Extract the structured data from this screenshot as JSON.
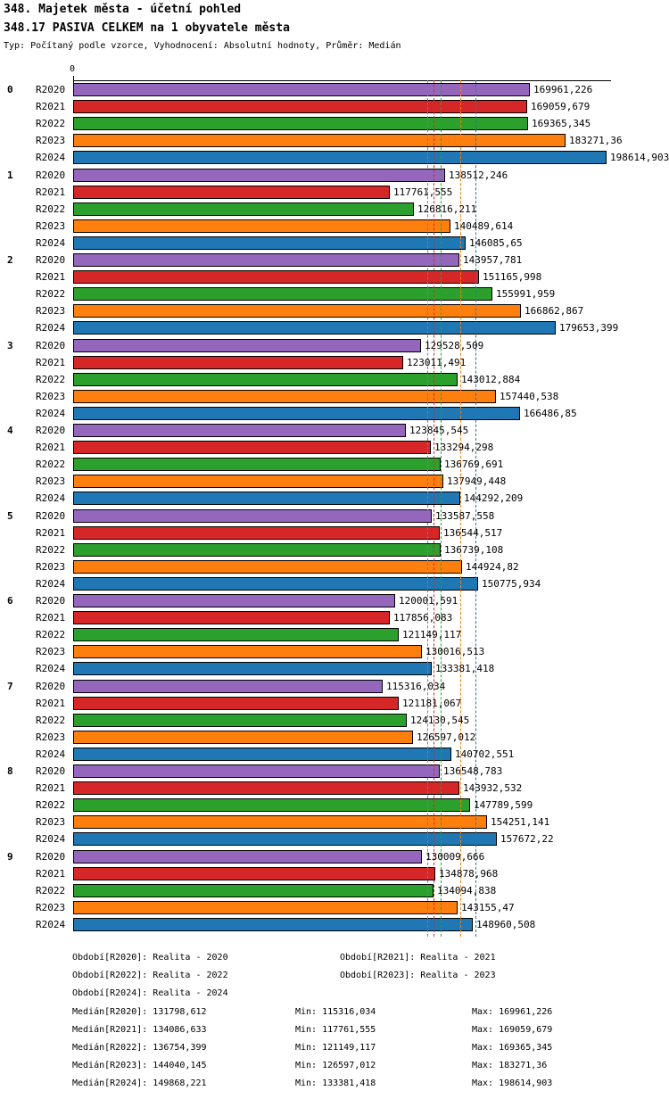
{
  "title": "348. Majetek města - účetní pohled",
  "subtitle": "348.17 PASIVA CELKEM na 1 obyvatele města",
  "meta": "Typ: Počítaný podle vzorce, Vyhodnocení: Absolutní hodnoty, Průměr: Medián",
  "axis": {
    "zero_label": "0"
  },
  "chart_data": {
    "type": "bar",
    "orientation": "horizontal",
    "xlim": [
      0,
      200000
    ],
    "grid": false,
    "categories": [
      "0",
      "1",
      "2",
      "3",
      "4",
      "5",
      "6",
      "7",
      "8",
      "9"
    ],
    "series_labels": [
      "R2020",
      "R2021",
      "R2022",
      "R2023",
      "R2024"
    ],
    "series_colors": [
      "#9467bd",
      "#d62728",
      "#2ca02c",
      "#ff7f0e",
      "#1f77b4"
    ],
    "medians": [
      131798.612,
      134086.633,
      136754.399,
      144040.145,
      149868.221
    ],
    "groups": [
      {
        "label": "0",
        "values": [
          169961.226,
          169059.679,
          169365.345,
          183271.36,
          198614.903
        ],
        "value_labels": [
          "169961,226",
          "169059,679",
          "169365,345",
          "183271,36",
          "198614,903"
        ]
      },
      {
        "label": "1",
        "values": [
          138512.246,
          117761.555,
          126816.211,
          140489.614,
          146085.65
        ],
        "value_labels": [
          "138512,246",
          "117761,555",
          "126816,211",
          "140489,614",
          "146085,65"
        ]
      },
      {
        "label": "2",
        "values": [
          143957.781,
          151165.998,
          155991.959,
          166862.867,
          179653.399
        ],
        "value_labels": [
          "143957,781",
          "151165,998",
          "155991,959",
          "166862,867",
          "179653,399"
        ]
      },
      {
        "label": "3",
        "values": [
          129528.509,
          123011.491,
          143012.884,
          157440.538,
          166486.85
        ],
        "value_labels": [
          "129528,509",
          "123011,491",
          "143012,884",
          "157440,538",
          "166486,85"
        ]
      },
      {
        "label": "4",
        "values": [
          123845.545,
          133294.298,
          136769.691,
          137949.448,
          144292.209
        ],
        "value_labels": [
          "123845,545",
          "133294,298",
          "136769,691",
          "137949,448",
          "144292,209"
        ]
      },
      {
        "label": "5",
        "values": [
          133587.558,
          136544.517,
          136739.108,
          144924.82,
          150775.934
        ],
        "value_labels": [
          "133587,558",
          "136544,517",
          "136739,108",
          "144924,82",
          "150775,934"
        ]
      },
      {
        "label": "6",
        "values": [
          120001.591,
          117856.083,
          121149.117,
          130016.513,
          133381.418
        ],
        "value_labels": [
          "120001,591",
          "117856,083",
          "121149,117",
          "130016,513",
          "133381,418"
        ]
      },
      {
        "label": "7",
        "values": [
          115316.034,
          121181.067,
          124130.545,
          126597.012,
          140702.551
        ],
        "value_labels": [
          "115316,034",
          "121181,067",
          "124130,545",
          "126597,012",
          "140702,551"
        ]
      },
      {
        "label": "8",
        "values": [
          136548.783,
          143932.532,
          147789.599,
          154251.141,
          157672.22
        ],
        "value_labels": [
          "136548,783",
          "143932,532",
          "147789,599",
          "154251,141",
          "157672,22"
        ]
      },
      {
        "label": "9",
        "values": [
          130009.666,
          134878.968,
          134094.838,
          143155.47,
          148960.508
        ],
        "value_labels": [
          "130009,666",
          "134878,968",
          "134094,838",
          "143155,47",
          "148960,508"
        ]
      }
    ]
  },
  "footer": {
    "period_lines": [
      {
        "col1": "Období[R2020]: Realita - 2020",
        "col2": "Období[R2021]: Realita - 2021"
      },
      {
        "col1": "Období[R2022]: Realita - 2022",
        "col2": "Období[R2023]: Realita - 2023"
      },
      {
        "col1": "Období[R2024]: Realita - 2024",
        "col2": ""
      }
    ],
    "stat_lines": [
      {
        "median": "Medián[R2020]: 131798,612",
        "min": "Min: 115316,034",
        "max": "Max: 169961,226"
      },
      {
        "median": "Medián[R2021]: 134086,633",
        "min": "Min: 117761,555",
        "max": "Max: 169059,679"
      },
      {
        "median": "Medián[R2022]: 136754,399",
        "min": "Min: 121149,117",
        "max": "Max: 169365,345"
      },
      {
        "median": "Medián[R2023]: 144040,145",
        "min": "Min: 126597,012",
        "max": "Max: 183271,36"
      },
      {
        "median": "Medián[R2024]: 149868,221",
        "min": "Min: 133381,418",
        "max": "Max: 198614,903"
      }
    ]
  }
}
